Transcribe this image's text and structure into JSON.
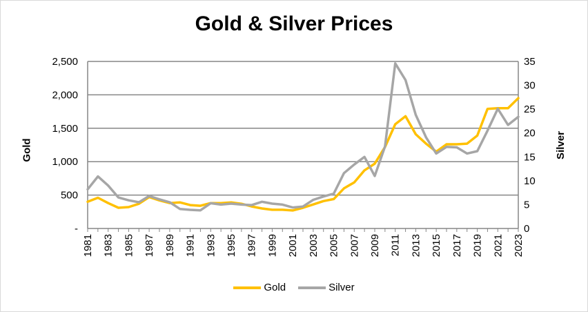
{
  "chart_data": {
    "type": "line",
    "title": "Gold & Silver Prices",
    "y_left_label": "Gold",
    "y_right_label": "Silver",
    "y_left_ticks": [
      "-",
      "500",
      "1,000",
      "1,500",
      "2,000",
      "2,500"
    ],
    "y_right_ticks": [
      "0",
      "5",
      "10",
      "15",
      "20",
      "25",
      "30",
      "35"
    ],
    "y_left_range": [
      0,
      2500
    ],
    "y_right_range": [
      0,
      35
    ],
    "x_tick_labels": [
      "1981",
      "1983",
      "1985",
      "1987",
      "1989",
      "1991",
      "1993",
      "1995",
      "1997",
      "1999",
      "2001",
      "2003",
      "2005",
      "2007",
      "2009",
      "2011",
      "2013",
      "2015",
      "2017",
      "2019",
      "2021",
      "2023"
    ],
    "grid": "horizontal",
    "legend_position": "bottom",
    "x": [
      1981,
      1982,
      1983,
      1984,
      1985,
      1986,
      1987,
      1988,
      1989,
      1990,
      1991,
      1992,
      1993,
      1994,
      1995,
      1996,
      1997,
      1998,
      1999,
      2000,
      2001,
      2002,
      2003,
      2004,
      2005,
      2006,
      2007,
      2008,
      2009,
      2010,
      2011,
      2012,
      2013,
      2014,
      2015,
      2016,
      2017,
      2018,
      2019,
      2020,
      2021,
      2022,
      2023
    ],
    "series": [
      {
        "name": "Gold",
        "axis": "left",
        "color": "#ffc000",
        "values": [
          400,
          460,
          380,
          310,
          320,
          370,
          470,
          420,
          380,
          390,
          350,
          340,
          380,
          380,
          390,
          370,
          330,
          300,
          280,
          280,
          270,
          310,
          360,
          410,
          440,
          600,
          690,
          870,
          970,
          1220,
          1560,
          1680,
          1410,
          1270,
          1150,
          1260,
          1260,
          1270,
          1390,
          1790,
          1800,
          1800,
          1950
        ]
      },
      {
        "name": "Silver",
        "axis": "right",
        "color": "#a6a6a6",
        "values": [
          8.2,
          10.9,
          9.0,
          6.5,
          5.9,
          5.5,
          6.8,
          6.1,
          5.5,
          4.1,
          3.9,
          3.8,
          5.3,
          5.0,
          5.2,
          5.0,
          4.9,
          5.6,
          5.2,
          5.0,
          4.4,
          4.6,
          6.0,
          6.7,
          7.3,
          11.6,
          13.4,
          15.0,
          11.0,
          17.2,
          34.6,
          31.1,
          23.8,
          19.1,
          15.7,
          17.1,
          17.0,
          15.7,
          16.2,
          20.5,
          25.1,
          21.7,
          23.4
        ]
      }
    ]
  }
}
